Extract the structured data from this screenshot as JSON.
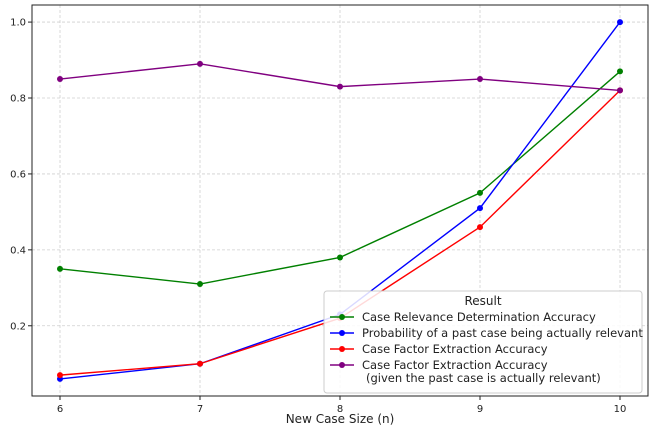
{
  "chart_data": {
    "type": "line",
    "title": "",
    "xlabel": "New Case Size (n)",
    "ylabel": "",
    "x": [
      6,
      7,
      8,
      9,
      10
    ],
    "xlim": [
      5.8,
      10.2
    ],
    "ylim": [
      0.015,
      1.045
    ],
    "xticks": [
      "6",
      "7",
      "8",
      "9",
      "10"
    ],
    "yticks": [
      "0.2",
      "0.4",
      "0.6",
      "0.8",
      "1.0"
    ],
    "grid": true,
    "legend_title": "Result",
    "legend_position": "lower-right",
    "series": [
      {
        "name": "Case Relevance Determination Accuracy",
        "color": "#008000",
        "values": [
          0.35,
          0.31,
          0.38,
          0.55,
          0.87
        ]
      },
      {
        "name": "Probability of a past case being actually relevant",
        "color": "#0000ff",
        "values": [
          0.06,
          0.1,
          0.23,
          0.51,
          1.0
        ]
      },
      {
        "name": "Case Factor Extraction Accuracy",
        "color": "#ff0000",
        "values": [
          0.07,
          0.1,
          0.22,
          0.46,
          0.82
        ]
      },
      {
        "name": "Case Factor Extraction Accuracy\n(given the past case is actually relevant)",
        "color": "#800080",
        "values": [
          0.85,
          0.89,
          0.83,
          0.85,
          0.82
        ]
      }
    ]
  }
}
